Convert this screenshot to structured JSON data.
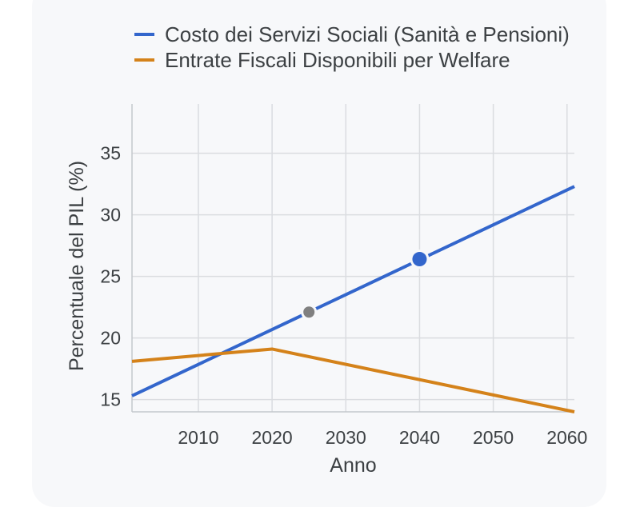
{
  "chart_data": {
    "type": "line",
    "xlabel": "Anno",
    "ylabel": "Percentuale del PIL (%)",
    "xlim": [
      2001,
      2061
    ],
    "ylim": [
      14,
      39
    ],
    "x_ticks": [
      2010,
      2020,
      2030,
      2040,
      2050,
      2060
    ],
    "y_ticks": [
      15,
      20,
      25,
      30,
      35
    ],
    "grid": true,
    "legend_position": "top",
    "series": [
      {
        "name": "Costo dei Servizi Sociali (Sanità e Pensioni)",
        "color": "#3366cc",
        "x": [
          2001,
          2061
        ],
        "y": [
          15.3,
          32.3
        ]
      },
      {
        "name": "Entrate Fiscali Disponibili per Welfare",
        "color": "#d4821a",
        "x": [
          2001,
          2020,
          2061
        ],
        "y": [
          18.1,
          19.1,
          14.0
        ]
      }
    ],
    "annotations": [
      {
        "type": "marker",
        "x": 2025,
        "y": 22.1,
        "color": "#808080"
      },
      {
        "type": "marker",
        "x": 2040,
        "y": 26.4,
        "color": "#3366cc"
      }
    ]
  }
}
